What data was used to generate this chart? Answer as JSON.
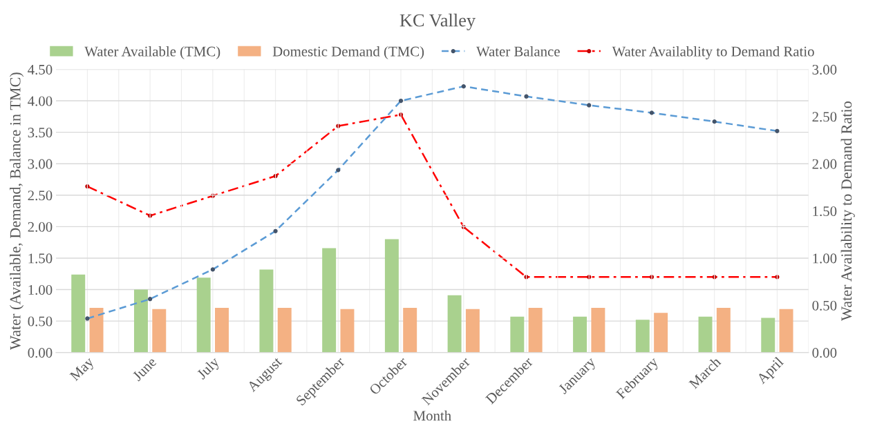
{
  "chart_data": {
    "type": "bar",
    "title": "KC Valley",
    "xlabel": "Month",
    "ylabel": "Water (Available, Demand, Balance in TMC)",
    "y2label": "Water Availability to Demand Ratio",
    "categories": [
      "May",
      "June",
      "July",
      "August",
      "September",
      "October",
      "November",
      "December",
      "January",
      "February",
      "March",
      "April"
    ],
    "series": [
      {
        "name": "Water Available (TMC)",
        "color": "#a9d18e",
        "values": [
          1.24,
          1.0,
          1.19,
          1.32,
          1.66,
          1.8,
          0.91,
          0.57,
          0.57,
          0.52,
          0.57,
          0.55
        ]
      },
      {
        "name": "Domestic Demand (TMC)",
        "color": "#f4b183",
        "values": [
          0.71,
          0.69,
          0.71,
          0.71,
          0.69,
          0.71,
          0.69,
          0.71,
          0.71,
          0.63,
          0.71,
          0.69
        ]
      },
      {
        "name": "Water Balance",
        "type": "line",
        "color": "#5b9bd5",
        "line_style": "dashed",
        "marker": "circle",
        "values": [
          0.54,
          0.85,
          1.32,
          1.93,
          2.9,
          4.0,
          4.23,
          4.07,
          3.93,
          3.81,
          3.67,
          3.52
        ]
      },
      {
        "name": "Water Availablity to Demand Ratio",
        "type": "line",
        "color": "#ff0000",
        "line_style": "dashdot",
        "marker": "circle",
        "axis": "y2",
        "values": [
          1.76,
          1.45,
          1.66,
          1.87,
          2.4,
          2.52,
          1.33,
          0.8,
          0.8,
          0.8,
          0.8,
          0.8
        ]
      }
    ],
    "ylim": [
      0,
      4.5
    ],
    "yticks": [
      {
        "value": 0,
        "label": "0.00"
      },
      {
        "value": 0.5,
        "label": "0.50"
      },
      {
        "value": 1,
        "label": "1.00"
      },
      {
        "value": 1.5,
        "label": "1.50"
      },
      {
        "value": 2,
        "label": "2.00"
      },
      {
        "value": 2.5,
        "label": "2.50"
      },
      {
        "value": 3,
        "label": "3.00"
      },
      {
        "value": 3.5,
        "label": "3.50"
      },
      {
        "value": 4,
        "label": "4.00"
      },
      {
        "value": 4.5,
        "label": "4.50"
      }
    ],
    "y2lim": [
      0,
      3
    ],
    "y2ticks": [
      {
        "value": 0,
        "label": "0.00"
      },
      {
        "value": 0.5,
        "label": "0.50"
      },
      {
        "value": 1,
        "label": "1.00"
      },
      {
        "value": 1.5,
        "label": "1.50"
      },
      {
        "value": 2,
        "label": "2.00"
      },
      {
        "value": 2.5,
        "label": "2.50"
      },
      {
        "value": 3,
        "label": "3.00"
      }
    ],
    "grid": true,
    "legend": "top"
  }
}
